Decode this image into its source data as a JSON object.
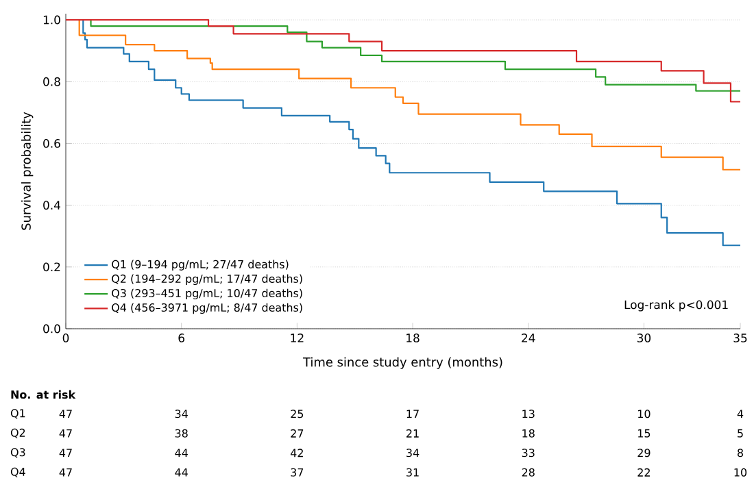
{
  "chart_data": [
    {
      "type": "step",
      "xlabel": "Time since study entry (months)",
      "ylabel": "Survival probability",
      "xlim": [
        0,
        35
      ],
      "ylim": [
        0,
        1.02
      ],
      "xticks": [
        0,
        6,
        12,
        18,
        24,
        30,
        35
      ],
      "yticks": [
        {
          "value": 0,
          "label": "0.0"
        },
        0.2,
        0.4,
        0.6,
        0.8,
        {
          "value": 1,
          "label": "1.0"
        }
      ],
      "grid": "y",
      "legend": "bottom left",
      "annotations": [
        "Log-rank p<0.001"
      ],
      "series": [
        {
          "name": "Q1 (9–194 pg/mL; 27/47 deaths)",
          "color": "#1f77b4",
          "x": [
            0,
            0.9,
            1.0,
            1.1,
            3.0,
            3.3,
            4.3,
            4.6,
            5.7,
            6.0,
            6.4,
            9.2,
            11.2,
            13.7,
            14.7,
            14.9,
            15.2,
            16.1,
            16.6,
            16.8,
            22.0,
            24.8,
            28.6,
            30.9,
            31.2,
            34.1,
            35
          ],
          "values": [
            1,
            0.957,
            0.936,
            0.91,
            0.89,
            0.865,
            0.84,
            0.805,
            0.78,
            0.76,
            0.74,
            0.715,
            0.69,
            0.67,
            0.645,
            0.615,
            0.585,
            0.56,
            0.535,
            0.505,
            0.475,
            0.445,
            0.405,
            0.36,
            0.31,
            0.27,
            0.27
          ]
        },
        {
          "name": "Q2 (194–292 pg/mL; 17/47 deaths)",
          "color": "#ff7f0e",
          "x": [
            0,
            0.7,
            3.1,
            4.6,
            6.3,
            7.5,
            7.6,
            12.1,
            14.8,
            17.1,
            17.5,
            18.3,
            23.6,
            25.6,
            27.3,
            30.9,
            34.1,
            35
          ],
          "values": [
            1,
            0.95,
            0.92,
            0.9,
            0.875,
            0.86,
            0.84,
            0.81,
            0.78,
            0.75,
            0.73,
            0.695,
            0.66,
            0.63,
            0.59,
            0.555,
            0.515,
            0.515
          ]
        },
        {
          "name": "Q3 (293–451 pg/mL; 10/47 deaths)",
          "color": "#2ca02c",
          "x": [
            0,
            1.3,
            11.5,
            12.5,
            13.3,
            15.3,
            16.4,
            22.8,
            27.5,
            28.0,
            32.7,
            35
          ],
          "values": [
            1,
            0.98,
            0.96,
            0.93,
            0.91,
            0.885,
            0.865,
            0.84,
            0.815,
            0.79,
            0.77,
            0.77
          ]
        },
        {
          "name": "Q4 (456–3971 pg/mL; 8/47 deaths)",
          "color": "#d62728",
          "x": [
            0,
            7.4,
            8.7,
            14.7,
            16.4,
            26.5,
            30.9,
            33.1,
            34.5,
            35
          ],
          "values": [
            1,
            0.98,
            0.955,
            0.93,
            0.9,
            0.865,
            0.835,
            0.795,
            0.735,
            0.735
          ]
        }
      ]
    },
    {
      "type": "heatmap",
      "title": "No. at risk",
      "categories": [
        null,
        null,
        null,
        null,
        null,
        null,
        null
      ],
      "y_categories": [
        "Q1",
        "Q2",
        "Q3",
        "Q4"
      ],
      "data_labels": true,
      "cells": [
        [
          47,
          34,
          25,
          17,
          13,
          10,
          4
        ],
        [
          47,
          38,
          27,
          21,
          18,
          15,
          5
        ],
        [
          47,
          44,
          42,
          34,
          33,
          29,
          8
        ],
        [
          47,
          44,
          37,
          31,
          28,
          22,
          10
        ]
      ]
    }
  ]
}
